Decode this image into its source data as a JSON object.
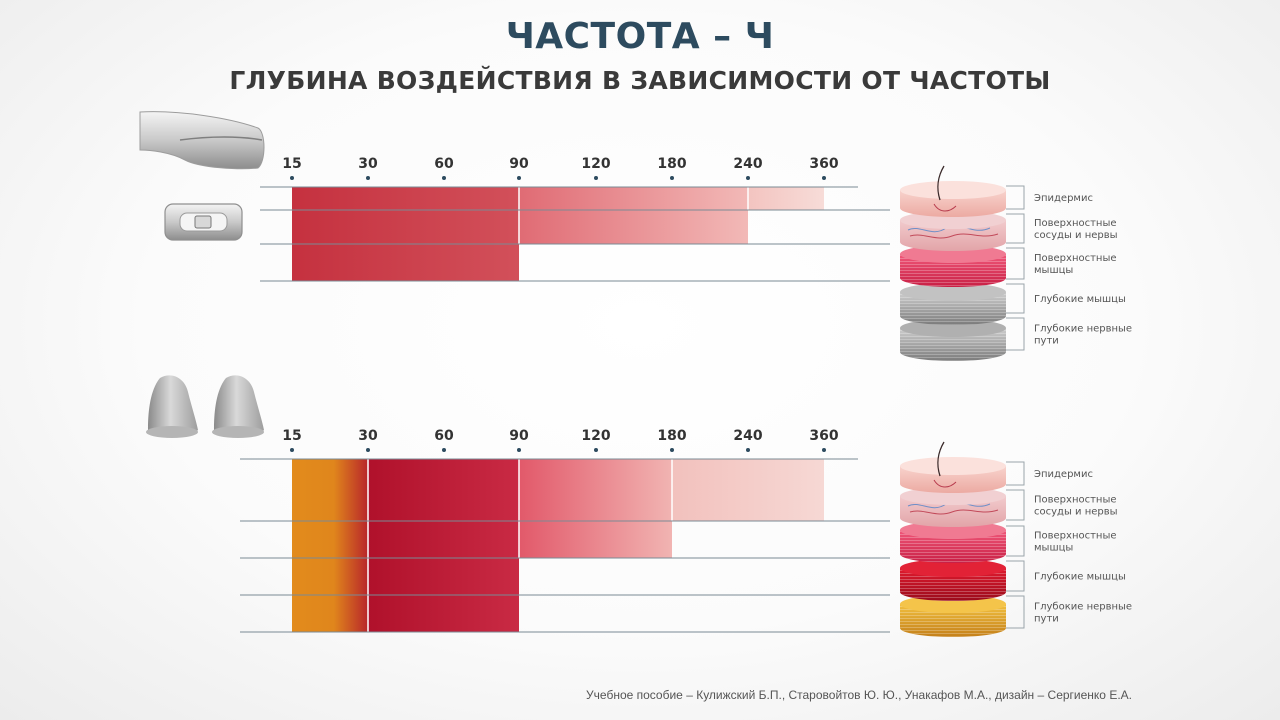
{
  "header": {
    "title": "ЧАСТОТА – Ч",
    "subtitle": "ГЛУБИНА ВОЗДЕЙСТВИЯ В ЗАВИСИМОСТИ ОТ ЧАСТОТЫ"
  },
  "credit": "Учебное пособие – Кулижский Б.П., Старовойтов Ю. Ю., Унакафов М.А.,  дизайн – Сергиенко Е.А.",
  "chart_data": [
    {
      "type": "bar",
      "frequency_ticks": [
        "15",
        "30",
        "60",
        "90",
        "120",
        "180",
        "240",
        "360"
      ],
      "layers": [
        "Эпидермис",
        "Поверхностные сосуды и нервы",
        "Поверхностные мышцы",
        "Глубокие мышцы",
        "Глубокие нервные пути"
      ],
      "series": [
        {
          "from_tick": 0,
          "to_tick": 3,
          "depth_rows": 3,
          "color": "#c93a45"
        },
        {
          "from_tick": 3,
          "to_tick": 6,
          "depth_rows": 2,
          "color": "#e98a8e"
        },
        {
          "from_tick": 6,
          "to_tick": 7,
          "depth_rows": 1,
          "color": "#f6d5d2"
        }
      ]
    },
    {
      "type": "bar",
      "frequency_ticks": [
        "15",
        "30",
        "60",
        "90",
        "120",
        "180",
        "240",
        "360"
      ],
      "layers": [
        "Эпидермис",
        "Поверхностные сосуды и нервы",
        "Поверхностные мышцы",
        "Глубокие мышцы",
        "Глубокие нервные пути"
      ],
      "series": [
        {
          "from_tick": 0,
          "to_tick": 1,
          "depth_rows": 5,
          "color": "#e48a1a"
        },
        {
          "from_tick": 1,
          "to_tick": 3,
          "depth_rows": 4,
          "color": "#b8122c"
        },
        {
          "from_tick": 3,
          "to_tick": 5,
          "depth_rows": 2,
          "color": "#e8707a"
        },
        {
          "from_tick": 5,
          "to_tick": 7,
          "depth_rows": 1,
          "color": "#f5cfcb"
        }
      ]
    }
  ],
  "layer_labels": [
    [
      "Эпидермис"
    ],
    [
      "Поверхностные",
      "сосуды и нервы"
    ],
    [
      "Поверхностные",
      "мышцы"
    ],
    [
      "Глубокие мышцы"
    ],
    [
      "Глубокие нервные",
      "пути"
    ]
  ],
  "colors": {
    "title": "#2d4b5f",
    "epidermis": "#f3c3bd",
    "vessels": "#eebcc0",
    "muscle": "#e23a5a",
    "deep_muscle_gray": "#9a9a9a",
    "deep_muscle_red": "#c8102e",
    "nerve_gray": "#a8a8a8",
    "nerve_gold": "#e0a020"
  },
  "icons": [
    "electrode-handle-icon",
    "electrode-pad-icon",
    "cup-electrode-icon"
  ]
}
